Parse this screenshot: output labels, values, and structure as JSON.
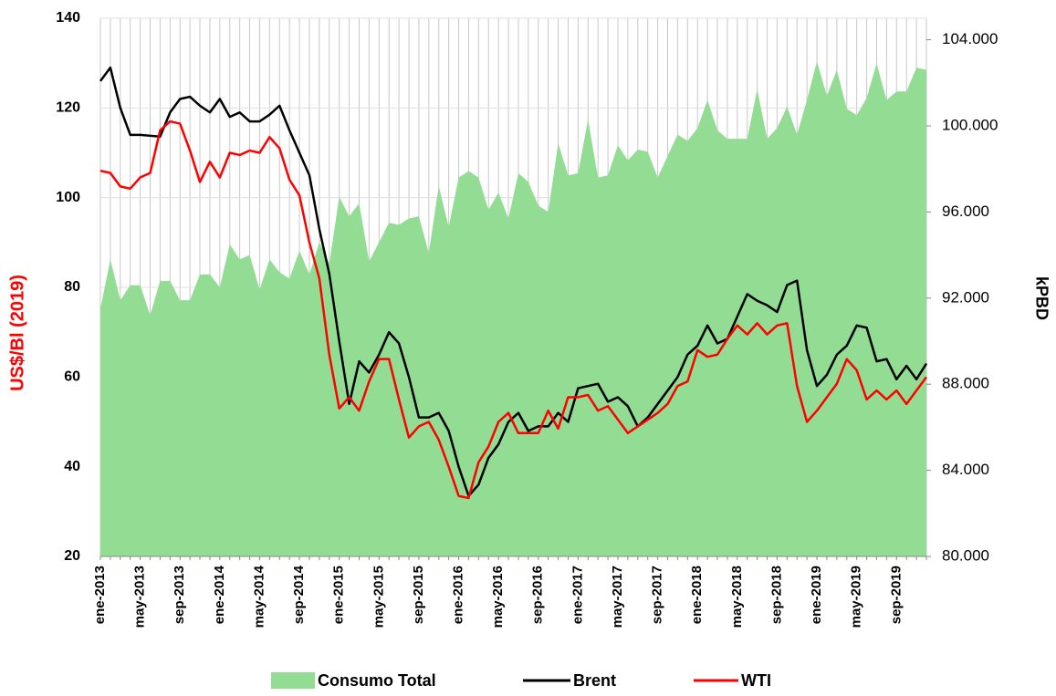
{
  "chart_data": {
    "type": "line",
    "ylabel": "US$/Bl (2019)",
    "y2label": "kPBD",
    "categories": [
      "ene-2013",
      null,
      null,
      null,
      "may-2013",
      null,
      null,
      null,
      "sep-2013",
      null,
      null,
      null,
      "ene-2014",
      null,
      null,
      null,
      "may-2014",
      null,
      null,
      null,
      "sep-2014",
      null,
      null,
      null,
      "ene-2015",
      null,
      null,
      null,
      "may-2015",
      null,
      null,
      null,
      "sep-2015",
      null,
      null,
      null,
      "ene-2016",
      null,
      null,
      null,
      "may-2016",
      null,
      null,
      null,
      "sep-2016",
      null,
      null,
      null,
      "ene-2017",
      null,
      null,
      null,
      "may-2017",
      null,
      null,
      null,
      "sep-2017",
      null,
      null,
      null,
      "ene-2018",
      null,
      null,
      null,
      "may-2018",
      null,
      null,
      null,
      "sep-2018",
      null,
      null,
      null,
      "ene-2019",
      null,
      null,
      null,
      "may-2019",
      null,
      null,
      null,
      "sep-2019",
      null,
      null,
      null
    ],
    "series": [
      {
        "name": "Consumo Total",
        "type": "area",
        "axis": "y2",
        "color": "#93dc93",
        "values": [
          91500,
          93800,
          91900,
          92600,
          92600,
          91200,
          92800,
          92800,
          91900,
          91900,
          93100,
          93100,
          92500,
          94500,
          93800,
          94000,
          92400,
          93800,
          93200,
          92900,
          94200,
          93100,
          94600,
          93600,
          96700,
          95800,
          96400,
          93700,
          94600,
          95500,
          95400,
          95700,
          95800,
          94100,
          97200,
          95300,
          97600,
          97900,
          97600,
          96100,
          96900,
          95700,
          97800,
          97400,
          96300,
          96000,
          99200,
          97700,
          97800,
          100300,
          97600,
          97700,
          99100,
          98400,
          98900,
          98800,
          97600,
          98600,
          99600,
          99300,
          99900,
          101200,
          99800,
          99400,
          99400,
          99400,
          101700,
          99400,
          99900,
          100900,
          99600,
          101200,
          103000,
          101400,
          102600,
          100800,
          100500,
          101300,
          102900,
          101200,
          101600,
          101600,
          102700,
          102600
        ]
      },
      {
        "name": "Brent",
        "type": "line",
        "color": "#000000",
        "values": [
          126,
          129,
          120,
          114,
          114,
          113.8,
          113.6,
          119,
          122,
          122.5,
          120.5,
          119,
          122,
          118,
          119,
          117,
          117,
          118.5,
          120.5,
          115,
          110,
          105,
          93,
          83,
          68,
          54,
          63.5,
          61,
          65,
          70,
          67.5,
          60,
          51,
          51,
          52,
          48,
          40,
          33.5,
          36,
          42,
          45,
          50,
          52,
          48,
          49,
          49,
          52,
          50,
          57.5,
          58,
          58.5,
          54.5,
          55.5,
          53.5,
          49,
          51,
          54,
          57,
          60,
          65,
          67,
          71.5,
          67.5,
          68.5,
          73.5,
          78.5,
          77,
          76,
          74.5,
          80.5,
          81.5,
          66,
          58,
          60.5,
          65,
          67,
          71.5,
          71,
          63.5,
          64,
          59.5,
          62.5,
          59.5,
          63
        ]
      },
      {
        "name": "WTI",
        "type": "line",
        "color": "#ff0000",
        "values": [
          106,
          105.5,
          102.5,
          102,
          104.5,
          105.5,
          115,
          117,
          116.5,
          110.5,
          103.5,
          108,
          104.5,
          110,
          109.5,
          110.5,
          110,
          113.5,
          111,
          104,
          100.5,
          90,
          82,
          65,
          53,
          55.5,
          52.5,
          59,
          64,
          64,
          55,
          46.5,
          49,
          50,
          46,
          40,
          33.5,
          33,
          41,
          44.5,
          50,
          52,
          47.5,
          47.5,
          47.5,
          52.5,
          48.5,
          55.5,
          55.5,
          56,
          52.5,
          53.5,
          50.5,
          47.5,
          49,
          50.5,
          52,
          54,
          58,
          59,
          66,
          64.5,
          65,
          68.5,
          71.5,
          69.5,
          72,
          69.5,
          71.5,
          72,
          58,
          50,
          52.5,
          55.5,
          58.5,
          64,
          61.5,
          55,
          57,
          55,
          57,
          54,
          57,
          60
        ]
      }
    ],
    "ylim": [
      20,
      140
    ],
    "yticks": [
      20,
      40,
      60,
      80,
      100,
      120,
      140
    ],
    "y2lim": [
      80000,
      105000
    ],
    "y2ticks": [
      {
        "value": 80000,
        "label": "80.000"
      },
      {
        "value": 84000,
        "label": "84.000"
      },
      {
        "value": 88000,
        "label": "88.000"
      },
      {
        "value": 92000,
        "label": "92.000"
      },
      {
        "value": 96000,
        "label": "96.000"
      },
      {
        "value": 100000,
        "label": "100.000"
      },
      {
        "value": 104000,
        "label": "104.000"
      }
    ],
    "grid": true,
    "legend": "bottom"
  }
}
